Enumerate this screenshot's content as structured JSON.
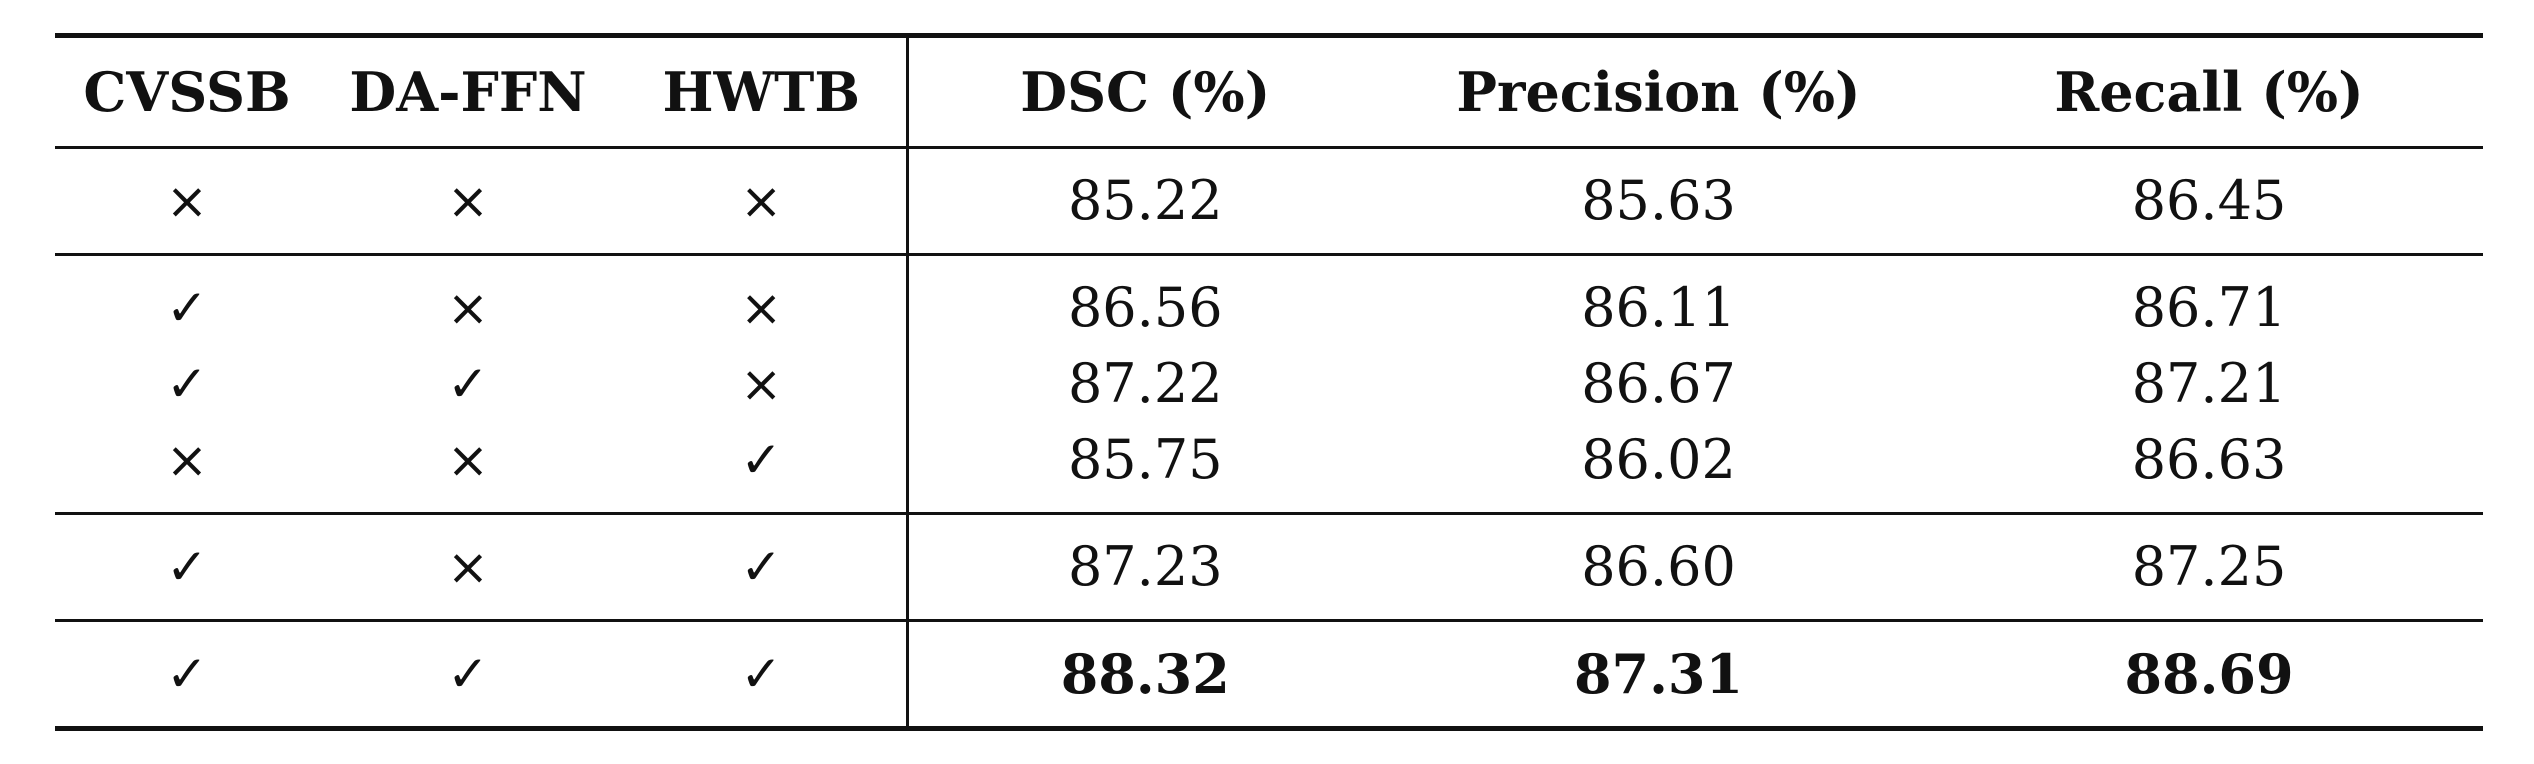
{
  "table": {
    "headers": [
      "CVSSB",
      "DA-FFN",
      "HWTB",
      "DSC (%)",
      "Precision (%)",
      "Recall (%)"
    ],
    "rows": [
      {
        "cvssb": "×",
        "daffn": "×",
        "hwtb": "×",
        "dsc": "85.22",
        "precision": "85.63",
        "recall": "86.45"
      },
      {
        "cvssb": "✓",
        "daffn": "×",
        "hwtb": "×",
        "dsc": "86.56",
        "precision": "86.11",
        "recall": "86.71"
      },
      {
        "cvssb": "✓",
        "daffn": "✓",
        "hwtb": "×",
        "dsc": "87.22",
        "precision": "86.67",
        "recall": "87.21"
      },
      {
        "cvssb": "×",
        "daffn": "×",
        "hwtb": "✓",
        "dsc": "85.75",
        "precision": "86.02",
        "recall": "86.63"
      },
      {
        "cvssb": "✓",
        "daffn": "×",
        "hwtb": "✓",
        "dsc": "87.23",
        "precision": "86.60",
        "recall": "87.25"
      },
      {
        "cvssb": "✓",
        "daffn": "✓",
        "hwtb": "✓",
        "dsc": "88.32",
        "precision": "87.31",
        "recall": "88.69"
      }
    ],
    "bold_last_row_metrics": true
  }
}
